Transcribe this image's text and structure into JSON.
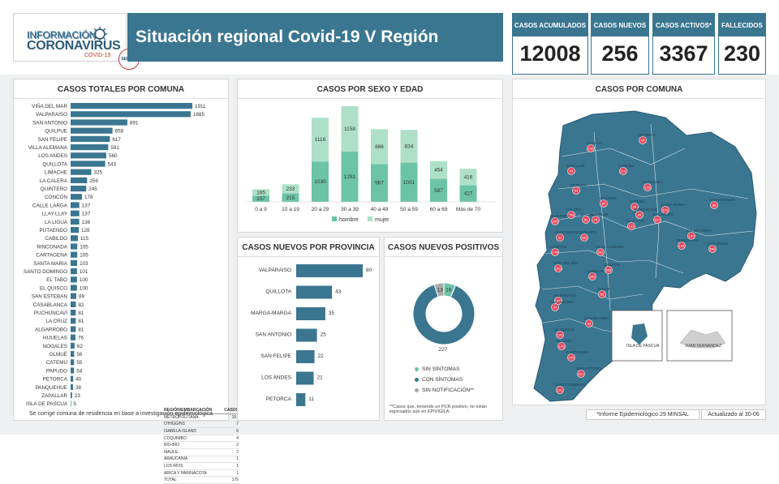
{
  "header": {
    "logo": {
      "line1": "INFORMACIÓN",
      "line2": "CORONAVIRUS",
      "line3": "COVID-19",
      "seal": "SEREMI"
    },
    "title": "Situación regional Covid-19 V Región"
  },
  "kpis": [
    {
      "label": "CASOS ACUMULADOS",
      "value": "12008"
    },
    {
      "label": "CASOS NUEVOS",
      "value": "256"
    },
    {
      "label": "CASOS ACTIVOS*",
      "value": "3367"
    },
    {
      "label": "FALLECIDOS",
      "value": "230"
    }
  ],
  "panels": {
    "comuna_totals": "CASOS TOTALES POR COMUNA",
    "sexo_edad": "CASOS POR SEXO Y EDAD",
    "provincia": "CASOS NUEVOS  POR PROVINCIA",
    "positivos": "CASOS NUEVOS POSITIVOS",
    "mapa": "CASOS POR COMUNA"
  },
  "colors": {
    "primary": "#3a7690",
    "light_green": "#aee0c8",
    "mid_green": "#6cc4a6",
    "gray": "#a8a8a8"
  },
  "chart_data": [
    {
      "type": "bar",
      "orientation": "horizontal",
      "title": "CASOS TOTALES POR COMUNA",
      "categories": [
        "VIÑA DEL MAR",
        "VALPARAISO",
        "SAN ANTONIO",
        "QUILPUE",
        "SAN FELIPE",
        "VILLA ALEMANA",
        "LOS ANDES",
        "QUILLOTA",
        "LIMACHE",
        "LA CALERA",
        "QUINTERO",
        "CONCON",
        "CALLE LARGA",
        "LLAY-LLAY",
        "LA LIGUA",
        "PUTAENDO",
        "CABILDO",
        "RINCONADA",
        "CARTAGENA",
        "SANTA MARIA",
        "SANTO DOMINGO",
        "EL TABO",
        "EL QUISCO",
        "SAN ESTEBAN",
        "CASABLANCA",
        "PUCHUNCAVÍ",
        "LA CRUZ",
        "ALGARROBO",
        "HIJUELAS",
        "NOGALES",
        "OLMUÉ",
        "CATEMU",
        "PAPUDO",
        "PETORCA",
        "PANQUEHUE",
        "ZAPALLAR",
        "ISLA DE PASCUA"
      ],
      "values": [
        1911,
        1885,
        891,
        658,
        617,
        591,
        560,
        543,
        325,
        259,
        245,
        178,
        137,
        137,
        136,
        128,
        115,
        105,
        105,
        103,
        101,
        100,
        100,
        89,
        82,
        81,
        81,
        81,
        76,
        62,
        56,
        55,
        54,
        40,
        38,
        23,
        5
      ]
    },
    {
      "type": "bar",
      "stacked": true,
      "title": "CASOS POR SEXO Y EDAD",
      "categories": [
        "0 a 9",
        "10 a 19",
        "20 a 29",
        "30 a 39",
        "40 a 49",
        "50 a 59",
        "60 a 69",
        "Más de 70"
      ],
      "series": [
        {
          "name": "hombre",
          "values": [
            157,
            215,
            1030,
            1281,
            967,
            1001,
            587,
            427
          ]
        },
        {
          "name": "mujer",
          "values": [
            165,
            233,
            1116,
            1158,
            886,
            834,
            454,
            416
          ]
        }
      ]
    },
    {
      "type": "bar",
      "orientation": "horizontal",
      "title": "CASOS NUEVOS  POR PROVINCIA",
      "categories": [
        "VALPARAISO",
        "QUILLOTA",
        "MARGA-MARGA",
        "SAN ANTONIO",
        "SAN FELIPE",
        "LOS ANDES",
        "PETORCA"
      ],
      "values": [
        80,
        43,
        35,
        25,
        22,
        21,
        11
      ]
    },
    {
      "type": "pie",
      "donut": true,
      "title": "CASOS NUEVOS POSITIVOS",
      "categories": [
        "SIN SÍNTOMAS",
        "CON SÍNTOMAS",
        "SIN NOTIFICACIÓN**"
      ],
      "values": [
        16,
        227,
        13
      ]
    }
  ],
  "region_table": {
    "headers": [
      "REGIÓN/EMBARCACIÓN",
      "CASOS"
    ],
    "rows": [
      [
        "METROPOLITANA",
        "151"
      ],
      [
        "O'HIGGINS",
        "7"
      ],
      [
        "ISABELA ISLAND",
        "6"
      ],
      [
        "COQUIMBO",
        "4"
      ],
      [
        "BÍO-BÍO",
        "2"
      ],
      [
        "MAULE",
        "2"
      ],
      [
        "ARAUCANÍA",
        "1"
      ],
      [
        "LOS RÍOS",
        "1"
      ],
      [
        "ARICA Y PARINACOTA",
        "1"
      ],
      [
        "TOTAL",
        "175"
      ]
    ]
  },
  "notes": {
    "correction": "Se corrige comuna de residencia en base a investigación epidemiológica",
    "positivos_note": "**Casos que, teniendo un PCR positivo, no están ingresados aún en EPIVIGILA.",
    "informe": "*Informe Epidemiológico 29 MINSAL",
    "actualizado": "Actualizado al 30-06"
  },
  "map": {
    "labels": [
      "PETORCA",
      "LA LIGUA",
      "ZAPALLAR",
      "PAPUDO",
      "CABILDO",
      "PUTAENDO",
      "CATEMU",
      "NOGALES",
      "HIJUELAS",
      "LA CRUZ",
      "CALERA",
      "SANTA MARÍA",
      "SAN FELIPE",
      "PANQUEHUE",
      "LLAY LLAY",
      "SAN ESTEBAN",
      "LOS ANDES",
      "RINCONADA",
      "CALLE LARGA",
      "QUILLOTA",
      "QUINTERO",
      "PUCHUNCAVÍ",
      "CONCÓN",
      "VIÑA DEL MAR",
      "VALPARAÍSO",
      "QUILPUÉ",
      "VILLA ALEMANA",
      "LIMACHE",
      "OLMUÉ",
      "CASABLANCA",
      "ALGARROBO",
      "EL QUISCO",
      "EL TABO",
      "CARTAGENA",
      "SAN ANTONIO",
      "SANTO DOMINGO",
      "ISLA DE PASCUA",
      "JUAN FERNÁNDEZ"
    ],
    "bubbles": [
      "40",
      "136",
      "23",
      "54",
      "115",
      "128",
      "55",
      "62",
      "76",
      "81",
      "259",
      "103",
      "617",
      "38",
      "137",
      "89",
      "560",
      "105",
      "137",
      "543",
      "245",
      "81",
      "178",
      "1911",
      "1885",
      "658",
      "591",
      "325",
      "56",
      "82",
      "81",
      "100",
      "100",
      "105",
      "891",
      "101",
      "5",
      "0"
    ]
  }
}
